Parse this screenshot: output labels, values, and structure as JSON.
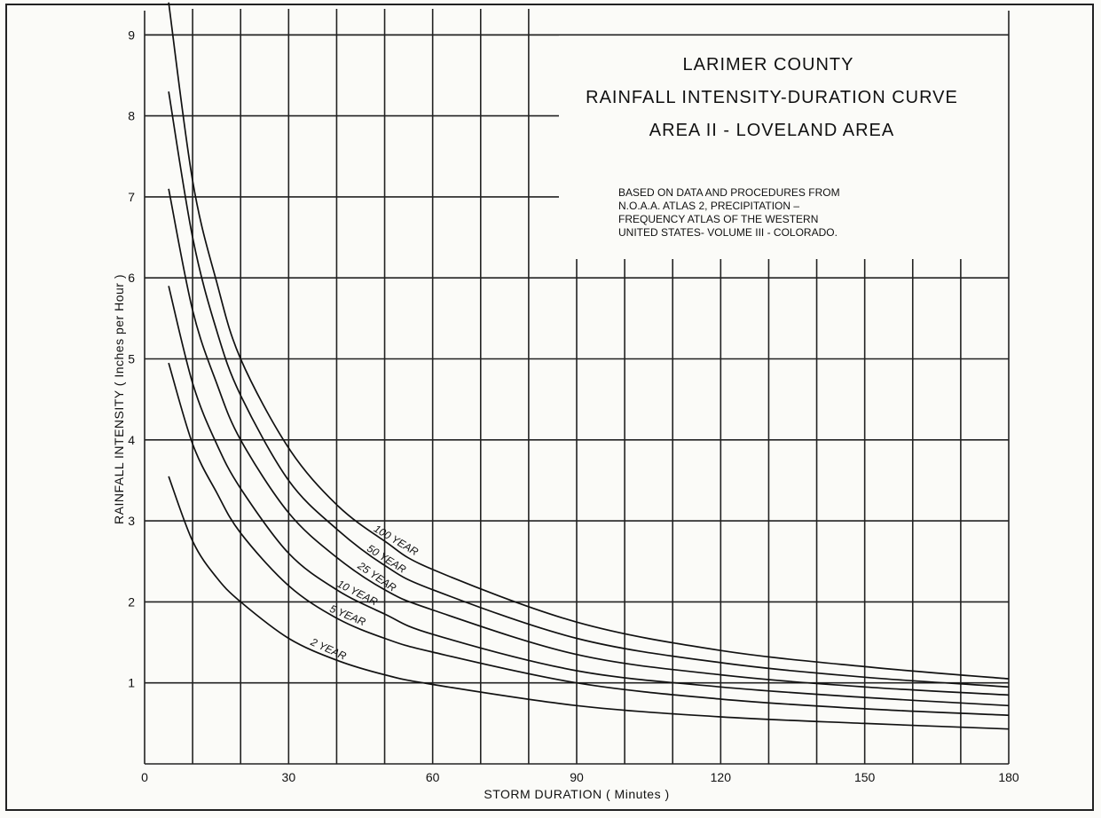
{
  "chart_data": {
    "type": "line",
    "title_lines": [
      "LARIMER COUNTY",
      "RAINFALL INTENSITY-DURATION CURVE",
      "AREA II - LOVELAND AREA"
    ],
    "note_lines": [
      "BASED ON DATA AND PROCEDURES FROM",
      "N.O.A.A. ATLAS 2, PRECIPITATION –",
      "FREQUENCY ATLAS OF THE WESTERN",
      "UNITED STATES- VOLUME III - COLORADO."
    ],
    "xlabel": "STORM DURATION ( Minutes )",
    "ylabel": "RAINFALL INTENSITY ( Inches per Hour )",
    "xlim": [
      0,
      180
    ],
    "ylim": [
      0,
      9
    ],
    "x_ticks": [
      0,
      30,
      60,
      90,
      120,
      150,
      180
    ],
    "y_ticks": [
      1,
      2,
      3,
      4,
      5,
      6,
      7,
      8,
      9
    ],
    "grid": true,
    "x": [
      5,
      10,
      15,
      20,
      30,
      40,
      50,
      60,
      90,
      120,
      150,
      180
    ],
    "series": [
      {
        "name": "100 YEAR",
        "values": [
          9.4,
          7.2,
          5.95,
          5.0,
          3.9,
          3.2,
          2.75,
          2.4,
          1.75,
          1.4,
          1.2,
          1.05
        ]
      },
      {
        "name": "50 YEAR",
        "values": [
          8.3,
          6.5,
          5.35,
          4.55,
          3.5,
          2.9,
          2.45,
          2.15,
          1.55,
          1.25,
          1.07,
          0.95
        ]
      },
      {
        "name": "25 YEAR",
        "values": [
          7.1,
          5.6,
          4.7,
          4.0,
          3.1,
          2.55,
          2.15,
          1.9,
          1.35,
          1.1,
          0.95,
          0.85
        ]
      },
      {
        "name": "10 YEAR",
        "values": [
          5.9,
          4.7,
          3.95,
          3.4,
          2.6,
          2.15,
          1.85,
          1.6,
          1.15,
          0.95,
          0.82,
          0.72
        ]
      },
      {
        "name": "5 YEAR",
        "values": [
          4.95,
          3.95,
          3.35,
          2.85,
          2.2,
          1.8,
          1.55,
          1.38,
          1.0,
          0.8,
          0.68,
          0.6
        ]
      },
      {
        "name": "2 YEAR",
        "values": [
          3.55,
          2.75,
          2.3,
          2.0,
          1.55,
          1.28,
          1.1,
          0.98,
          0.72,
          0.58,
          0.5,
          0.43
        ]
      }
    ]
  }
}
